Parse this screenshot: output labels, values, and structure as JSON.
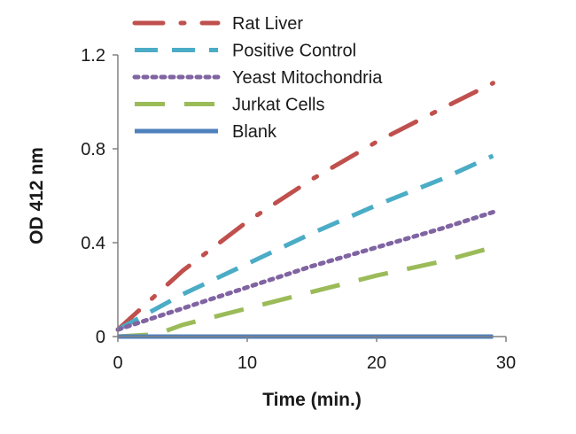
{
  "chart_data": {
    "type": "line",
    "title": "",
    "xlabel": "Time (min.)",
    "ylabel": "OD 412 nm",
    "xlim": [
      0,
      30
    ],
    "ylim": [
      0,
      1.2
    ],
    "x_ticks": [
      0,
      10,
      20,
      30
    ],
    "x_tick_labels": [
      "0",
      "10",
      "20",
      "30"
    ],
    "y_ticks": [
      0,
      0.4,
      0.8,
      1.2
    ],
    "y_tick_labels": [
      "0",
      "0.4",
      "0.8",
      "1.2"
    ],
    "grid": false,
    "legend_position": "top-left",
    "series": [
      {
        "name": "Rat Liver",
        "color": "#c0504d",
        "style": "dash-dot",
        "x": [
          0,
          5,
          10,
          15,
          20,
          25,
          29
        ],
        "y": [
          0.03,
          0.28,
          0.49,
          0.67,
          0.83,
          0.97,
          1.08
        ]
      },
      {
        "name": "Positive Control",
        "color": "#4bacc6",
        "style": "dash",
        "x": [
          0,
          5,
          10,
          15,
          20,
          25,
          29
        ],
        "y": [
          0.03,
          0.18,
          0.31,
          0.44,
          0.56,
          0.67,
          0.77
        ]
      },
      {
        "name": "Yeast Mitochondria",
        "color": "#8064a2",
        "style": "dot",
        "x": [
          0,
          5,
          10,
          15,
          20,
          25,
          29
        ],
        "y": [
          0.03,
          0.12,
          0.21,
          0.3,
          0.38,
          0.46,
          0.53
        ]
      },
      {
        "name": "Jurkat Cells",
        "color": "#9bbb59",
        "style": "long-dash",
        "x": [
          0,
          3,
          5,
          10,
          15,
          20,
          25,
          29
        ],
        "y": [
          0,
          0.01,
          0.05,
          0.12,
          0.19,
          0.26,
          0.32,
          0.38
        ]
      },
      {
        "name": "Blank",
        "color": "#4f81bd",
        "style": "solid",
        "x": [
          0,
          29
        ],
        "y": [
          0,
          0
        ]
      }
    ]
  }
}
